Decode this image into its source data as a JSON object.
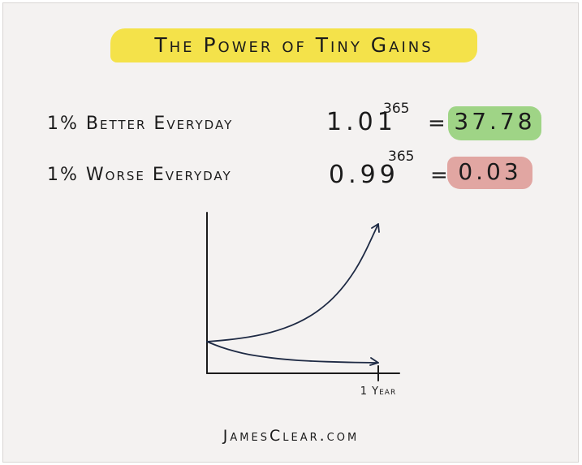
{
  "title": "The Power of Tiny Gains",
  "rows": [
    {
      "label": "1% Better Everyday",
      "base": "1.01",
      "exponent": "365",
      "equals": "=",
      "result": "37.78",
      "highlight": "#9fd486"
    },
    {
      "label": "1% Worse Everyday",
      "base": "0.99",
      "exponent": "365",
      "equals": "=",
      "result": "0.03",
      "highlight": "#e1a6a2"
    }
  ],
  "footer": "JamesClear.com",
  "colors": {
    "title_highlight": "#f4e24a",
    "curve": "#1e2a44",
    "axis": "#1b1b1b"
  },
  "chart_data": {
    "type": "line",
    "xlabel": "",
    "ylabel": "",
    "x_ticks": [
      "1 Year"
    ],
    "xlim": [
      0,
      365
    ],
    "ylim": [
      0,
      60
    ],
    "grid": false,
    "series": [
      {
        "x": [
          0,
          30,
          60,
          90,
          120,
          150,
          180,
          210,
          240,
          270,
          300,
          330,
          365
        ],
        "values": [
          1.0,
          1.35,
          1.82,
          2.45,
          3.3,
          4.45,
          6.0,
          8.09,
          10.9,
          14.7,
          19.8,
          26.7,
          37.78
        ]
      },
      {
        "x": [
          0,
          30,
          60,
          90,
          120,
          150,
          180,
          210,
          240,
          270,
          300,
          330,
          365
        ],
        "values": [
          1.0,
          0.74,
          0.55,
          0.4,
          0.3,
          0.22,
          0.16,
          0.12,
          0.09,
          0.07,
          0.05,
          0.04,
          0.03
        ]
      }
    ]
  }
}
